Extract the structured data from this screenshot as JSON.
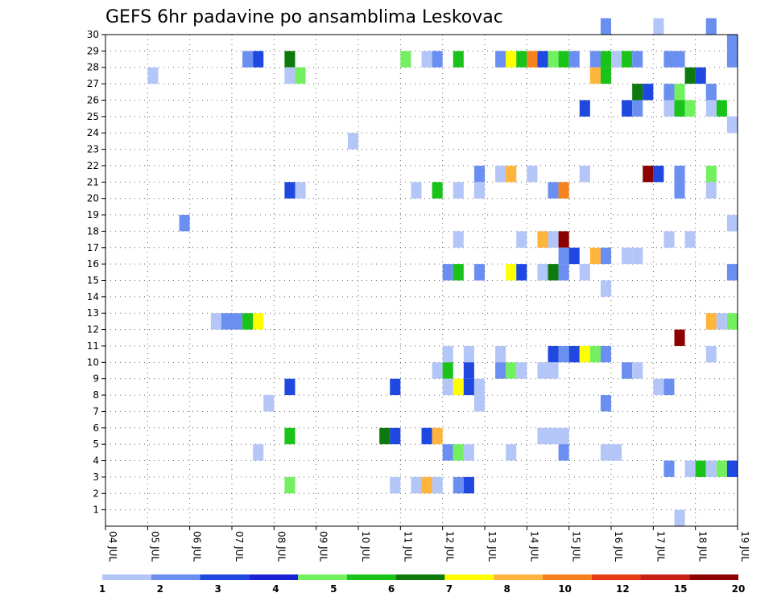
{
  "chart_data": {
    "type": "heatmap",
    "title": "GEFS 6hr padavine po ansamblima Leskovac",
    "xlabel": "",
    "ylabel": "",
    "x_ticks": [
      "04 JUL",
      "05 JUL",
      "06 JUL",
      "07 JUL",
      "08 JUL",
      "09 JUL",
      "10 JUL",
      "11 JUL",
      "12 JUL",
      "13 JUL",
      "14 JUL",
      "15 JUL",
      "16 JUL",
      "17 JUL",
      "18 JUL",
      "19 JUL"
    ],
    "xlim": [
      0,
      15
    ],
    "ylim": [
      0,
      30
    ],
    "y_ticks": [
      1,
      2,
      3,
      4,
      5,
      6,
      7,
      8,
      9,
      10,
      11,
      12,
      13,
      14,
      15,
      16,
      17,
      18,
      19,
      20,
      21,
      22,
      23,
      24,
      25,
      26,
      27,
      28,
      29,
      30
    ],
    "grid": true,
    "legend": {
      "placement": "bottom",
      "colors": [
        "#b3c6f7",
        "#6b8ff0",
        "#1f48e0",
        "#1a22d6",
        "#73f060",
        "#19c319",
        "#0c7a0c",
        "#ffff00",
        "#ffb43c",
        "#f5821e",
        "#e63c14",
        "#c81e14",
        "#8c0000"
      ],
      "labels": [
        "1",
        "",
        "2",
        "",
        "3",
        "",
        "4",
        "",
        "5",
        "",
        "6",
        "",
        "7",
        "",
        "8",
        "",
        "10",
        "",
        "12",
        "",
        "15",
        "",
        "20"
      ]
    },
    "cell_width": 0.25,
    "cells": [
      [
        11.75,
        30,
        2
      ],
      [
        13.0,
        30,
        1
      ],
      [
        14.25,
        30,
        2
      ],
      [
        14.75,
        29,
        2
      ],
      [
        3.25,
        28,
        2
      ],
      [
        3.5,
        28,
        3
      ],
      [
        4.25,
        28,
        7
      ],
      [
        7.0,
        28,
        5
      ],
      [
        7.5,
        28,
        1
      ],
      [
        7.75,
        28,
        2
      ],
      [
        8.25,
        28,
        6
      ],
      [
        9.25,
        28,
        2
      ],
      [
        9.5,
        28,
        8
      ],
      [
        9.75,
        28,
        6
      ],
      [
        10.0,
        28,
        10
      ],
      [
        10.25,
        28,
        3
      ],
      [
        10.5,
        28,
        5
      ],
      [
        10.75,
        28,
        6
      ],
      [
        11.0,
        28,
        2
      ],
      [
        11.5,
        28,
        2
      ],
      [
        11.75,
        28,
        6
      ],
      [
        12.0,
        28,
        1
      ],
      [
        12.25,
        28,
        6
      ],
      [
        12.5,
        28,
        2
      ],
      [
        13.25,
        28,
        2
      ],
      [
        13.5,
        28,
        2
      ],
      [
        14.75,
        28,
        2
      ],
      [
        1.0,
        27,
        1
      ],
      [
        4.25,
        27,
        1
      ],
      [
        4.5,
        27,
        5
      ],
      [
        11.5,
        27,
        9
      ],
      [
        11.75,
        27,
        6
      ],
      [
        13.75,
        27,
        7
      ],
      [
        14.0,
        27,
        3
      ],
      [
        12.5,
        26,
        7
      ],
      [
        12.75,
        26,
        3
      ],
      [
        13.25,
        26,
        2
      ],
      [
        13.5,
        26,
        5
      ],
      [
        14.25,
        26,
        2
      ],
      [
        11.25,
        25,
        3
      ],
      [
        12.25,
        25,
        3
      ],
      [
        12.5,
        25,
        2
      ],
      [
        13.25,
        25,
        1
      ],
      [
        13.5,
        25,
        6
      ],
      [
        13.75,
        25,
        5
      ],
      [
        14.25,
        25,
        1
      ],
      [
        14.5,
        25,
        6
      ],
      [
        14.75,
        24,
        1
      ],
      [
        5.75,
        23,
        1
      ],
      [
        8.75,
        21,
        2
      ],
      [
        9.25,
        21,
        1
      ],
      [
        9.5,
        21,
        9
      ],
      [
        10.0,
        21,
        1
      ],
      [
        11.25,
        21,
        1
      ],
      [
        12.75,
        21,
        13
      ],
      [
        13.0,
        21,
        3
      ],
      [
        13.5,
        21,
        2
      ],
      [
        14.25,
        21,
        5
      ],
      [
        4.25,
        20,
        3
      ],
      [
        4.5,
        20,
        1
      ],
      [
        7.25,
        20,
        1
      ],
      [
        7.75,
        20,
        6
      ],
      [
        8.25,
        20,
        1
      ],
      [
        8.75,
        20,
        1
      ],
      [
        10.5,
        20,
        2
      ],
      [
        10.75,
        20,
        10
      ],
      [
        13.5,
        20,
        2
      ],
      [
        14.25,
        20,
        1
      ],
      [
        1.75,
        18,
        2
      ],
      [
        14.75,
        18,
        1
      ],
      [
        8.25,
        17,
        1
      ],
      [
        9.75,
        17,
        1
      ],
      [
        10.25,
        17,
        9
      ],
      [
        10.5,
        17,
        1
      ],
      [
        10.75,
        17,
        13
      ],
      [
        13.25,
        17,
        1
      ],
      [
        13.75,
        17,
        1
      ],
      [
        10.75,
        16,
        2
      ],
      [
        11.0,
        16,
        3
      ],
      [
        11.5,
        16,
        9
      ],
      [
        11.75,
        16,
        2
      ],
      [
        12.25,
        16,
        1
      ],
      [
        12.5,
        16,
        1
      ],
      [
        8.0,
        15,
        2
      ],
      [
        8.25,
        15,
        6
      ],
      [
        8.75,
        15,
        2
      ],
      [
        9.5,
        15,
        8
      ],
      [
        9.75,
        15,
        3
      ],
      [
        10.25,
        15,
        1
      ],
      [
        10.5,
        15,
        7
      ],
      [
        10.75,
        15,
        2
      ],
      [
        11.25,
        15,
        1
      ],
      [
        14.75,
        15,
        2
      ],
      [
        11.75,
        14,
        1
      ],
      [
        2.5,
        12,
        1
      ],
      [
        2.75,
        12,
        2
      ],
      [
        3.0,
        12,
        2
      ],
      [
        3.25,
        12,
        6
      ],
      [
        3.5,
        12,
        8
      ],
      [
        14.25,
        12,
        9
      ],
      [
        14.5,
        12,
        1
      ],
      [
        14.75,
        12,
        5
      ],
      [
        13.5,
        11,
        13
      ],
      [
        8.0,
        10,
        1
      ],
      [
        8.5,
        10,
        1
      ],
      [
        9.25,
        10,
        1
      ],
      [
        10.5,
        10,
        3
      ],
      [
        10.75,
        10,
        2
      ],
      [
        11.0,
        10,
        3
      ],
      [
        11.25,
        10,
        8
      ],
      [
        11.5,
        10,
        5
      ],
      [
        11.75,
        10,
        2
      ],
      [
        14.25,
        10,
        1
      ],
      [
        7.75,
        9,
        1
      ],
      [
        8.0,
        9,
        6
      ],
      [
        8.5,
        9,
        3
      ],
      [
        9.25,
        9,
        2
      ],
      [
        9.5,
        9,
        5
      ],
      [
        9.75,
        9,
        1
      ],
      [
        10.25,
        9,
        1
      ],
      [
        10.5,
        9,
        1
      ],
      [
        12.25,
        9,
        2
      ],
      [
        12.5,
        9,
        1
      ],
      [
        4.25,
        8,
        3
      ],
      [
        6.75,
        8,
        3
      ],
      [
        8.0,
        8,
        1
      ],
      [
        8.25,
        8,
        8
      ],
      [
        8.5,
        8,
        3
      ],
      [
        8.75,
        8,
        1
      ],
      [
        13.0,
        8,
        1
      ],
      [
        13.25,
        8,
        2
      ],
      [
        3.75,
        7,
        1
      ],
      [
        8.75,
        7,
        1
      ],
      [
        11.75,
        7,
        2
      ],
      [
        4.25,
        5,
        6
      ],
      [
        6.5,
        5,
        7
      ],
      [
        6.75,
        5,
        3
      ],
      [
        7.5,
        5,
        3
      ],
      [
        7.75,
        5,
        9
      ],
      [
        10.25,
        5,
        1
      ],
      [
        10.5,
        5,
        1
      ],
      [
        10.75,
        5,
        1
      ],
      [
        3.5,
        4,
        1
      ],
      [
        8.0,
        4,
        2
      ],
      [
        8.25,
        4,
        5
      ],
      [
        8.5,
        4,
        1
      ],
      [
        9.5,
        4,
        1
      ],
      [
        10.75,
        4,
        2
      ],
      [
        11.75,
        4,
        1
      ],
      [
        12.0,
        4,
        1
      ],
      [
        13.25,
        3,
        2
      ],
      [
        13.75,
        3,
        1
      ],
      [
        14.0,
        3,
        6
      ],
      [
        14.25,
        3,
        1
      ],
      [
        14.5,
        3,
        5
      ],
      [
        14.75,
        3,
        3
      ],
      [
        4.25,
        2,
        5
      ],
      [
        6.75,
        2,
        1
      ],
      [
        7.25,
        2,
        1
      ],
      [
        7.5,
        2,
        9
      ],
      [
        7.75,
        2,
        1
      ],
      [
        8.25,
        2,
        2
      ],
      [
        8.5,
        2,
        3
      ],
      [
        13.5,
        0,
        1
      ]
    ]
  }
}
